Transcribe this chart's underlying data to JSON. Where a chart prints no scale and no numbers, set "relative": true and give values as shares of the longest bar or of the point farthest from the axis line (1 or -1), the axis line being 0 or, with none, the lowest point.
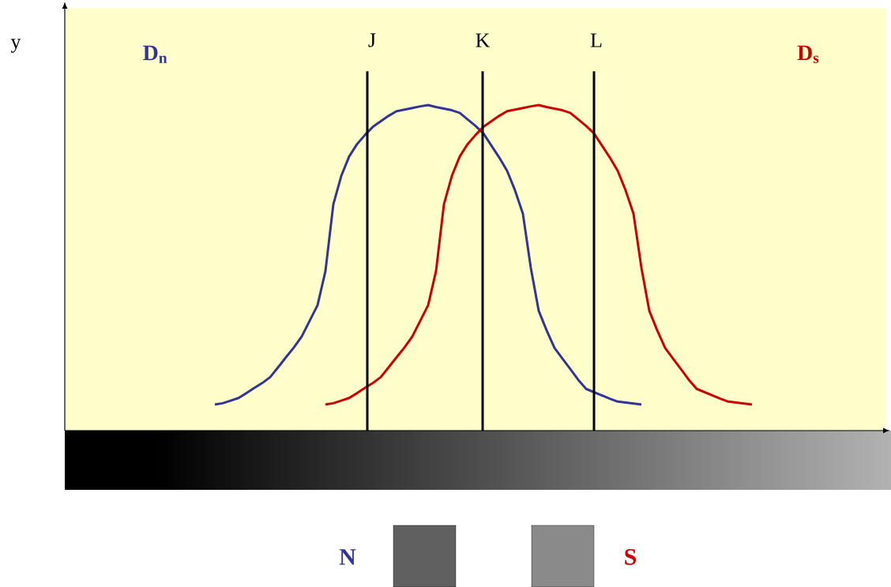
{
  "chart_data": {
    "type": "line",
    "relative": true,
    "ylabel": "y",
    "tick_labels": false,
    "marker": "none",
    "categories": [
      null,
      null,
      null,
      null,
      null,
      null,
      null,
      null,
      null,
      null,
      null,
      null,
      null,
      null,
      null,
      null,
      null,
      null,
      null,
      null,
      null,
      null,
      null,
      null,
      null,
      null,
      null,
      null,
      null,
      null,
      null,
      null,
      null,
      null,
      null,
      null,
      null,
      null,
      null,
      null,
      null,
      null,
      null,
      null,
      null,
      null,
      null,
      null,
      null,
      null,
      null,
      null,
      null,
      null,
      null,
      null,
      null,
      null,
      null,
      null,
      null,
      null,
      null,
      null,
      null,
      null,
      null,
      null,
      null,
      null,
      null,
      null,
      null,
      null,
      null,
      null,
      null,
      null,
      null,
      null,
      null,
      null,
      null,
      null,
      null,
      null,
      null,
      null,
      null,
      null,
      null,
      null,
      null,
      null,
      null,
      null,
      null,
      null,
      null,
      null,
      null,
      null,
      null,
      null,
      null
    ],
    "series": [
      {
        "name": "D$_{n}$",
        "color": "#333399",
        "values": [
          null,
          null,
          null,
          null,
          null,
          null,
          null,
          null,
          null,
          null,
          null,
          null,
          null,
          null,
          null,
          null,
          null,
          null,
          null,
          0.08,
          0.084,
          0.092,
          0.1,
          0.115,
          0.131,
          0.146,
          0.164,
          0.194,
          0.225,
          0.255,
          0.289,
          0.337,
          0.385,
          0.49,
          0.695,
          0.782,
          0.842,
          0.88,
          0.908,
          0.933,
          0.95,
          0.967,
          0.981,
          0.986,
          0.991,
          0.996,
          1,
          0.994,
          0.989,
          0.984,
          0.976,
          0.956,
          0.936,
          0.913,
          0.876,
          0.839,
          0.798,
          0.738,
          0.666,
          0.5,
          0.368,
          0.308,
          0.254,
          0.221,
          0.189,
          0.156,
          0.128,
          0.118,
          0.108,
          0.098,
          0.089,
          0.086,
          0.083,
          0.08,
          null,
          null,
          null,
          null,
          null,
          null,
          null,
          null,
          null,
          null,
          null,
          null,
          null,
          null,
          null,
          null,
          null,
          null,
          null,
          null,
          null,
          null,
          null,
          null,
          null,
          null,
          null,
          null,
          null,
          null,
          null
        ]
      },
      {
        "name": "D$_{s}$",
        "color": "#cc0000",
        "values": [
          null,
          null,
          null,
          null,
          null,
          null,
          null,
          null,
          null,
          null,
          null,
          null,
          null,
          null,
          null,
          null,
          null,
          null,
          null,
          null,
          null,
          null,
          null,
          null,
          null,
          null,
          null,
          null,
          null,
          null,
          null,
          null,
          null,
          0.08,
          0.084,
          0.092,
          0.1,
          0.115,
          0.131,
          0.146,
          0.164,
          0.194,
          0.225,
          0.255,
          0.289,
          0.337,
          0.385,
          0.49,
          0.695,
          0.782,
          0.842,
          0.88,
          0.908,
          0.933,
          0.95,
          0.967,
          0.981,
          0.986,
          0.991,
          0.996,
          1,
          0.994,
          0.989,
          0.984,
          0.976,
          0.956,
          0.936,
          0.913,
          0.876,
          0.839,
          0.798,
          0.738,
          0.666,
          0.5,
          0.368,
          0.308,
          0.254,
          0.221,
          0.189,
          0.156,
          0.128,
          0.118,
          0.108,
          0.098,
          0.089,
          0.086,
          0.083,
          0.08,
          null,
          null,
          null,
          null,
          null,
          null,
          null,
          null,
          null,
          null,
          null,
          null,
          null,
          null,
          null,
          null,
          null
        ]
      }
    ],
    "annotations": [
      "J",
      "K",
      "L",
      "N",
      "S"
    ]
  }
}
